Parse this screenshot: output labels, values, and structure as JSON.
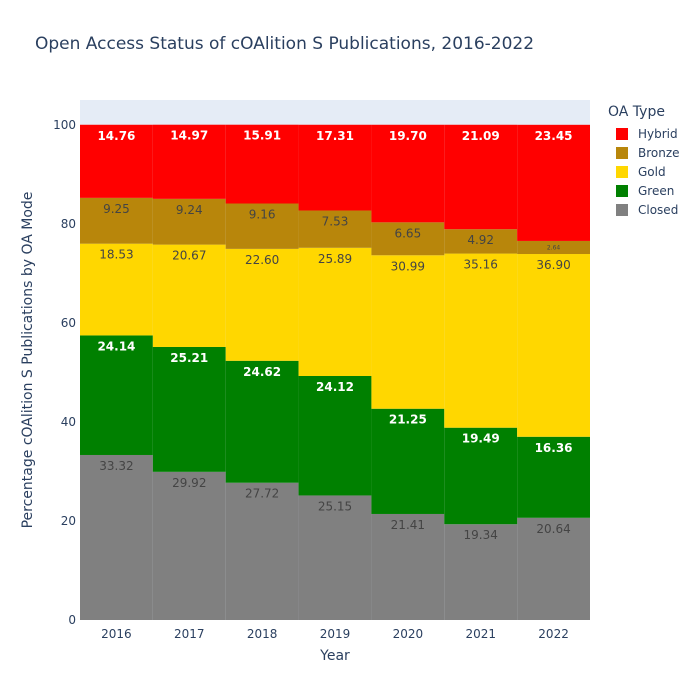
{
  "chart_data": {
    "type": "bar",
    "stacked": true,
    "title": "Open Access Status of cOAlition S Publications, 2016-2022",
    "xlabel": "Year",
    "ylabel": "Percentage cOAlition S Publications by OA Mode",
    "categories": [
      "2016",
      "2017",
      "2018",
      "2019",
      "2020",
      "2021",
      "2022"
    ],
    "ylim": [
      0,
      105
    ],
    "yticks": [
      0,
      20,
      40,
      60,
      80,
      100
    ],
    "grid": false,
    "legend_title": "OA Type",
    "legend_position": "right",
    "plot_background": "#e5ecf6",
    "series": [
      {
        "name": "Closed",
        "color": "#808080",
        "label_color": "#444444",
        "values": [
          33.32,
          29.92,
          27.72,
          25.15,
          21.41,
          19.34,
          20.64
        ],
        "labels": [
          "33.32",
          "29.92",
          "27.72",
          "25.15",
          "21.41",
          "19.34",
          "20.64"
        ]
      },
      {
        "name": "Green",
        "color": "#008000",
        "label_color": "#ffffff",
        "values": [
          24.14,
          25.21,
          24.62,
          24.12,
          21.25,
          19.49,
          16.36
        ],
        "labels": [
          "24.14",
          "25.21",
          "24.62",
          "24.12",
          "21.25",
          "19.49",
          "16.36"
        ]
      },
      {
        "name": "Gold",
        "color": "#ffd700",
        "label_color": "#444444",
        "values": [
          18.53,
          20.67,
          22.6,
          25.89,
          30.99,
          35.16,
          36.9
        ],
        "labels": [
          "18.53",
          "20.67",
          "22.60",
          "25.89",
          "30.99",
          "35.16",
          "36.90"
        ]
      },
      {
        "name": "Bronze",
        "color": "#b8860b",
        "label_color": "#444444",
        "values": [
          9.25,
          9.24,
          9.16,
          7.53,
          6.65,
          4.92,
          2.64
        ],
        "labels": [
          "9.25",
          "9.24",
          "9.16",
          "7.53",
          "6.65",
          "4.92",
          "2.64"
        ]
      },
      {
        "name": "Hybrid",
        "color": "#ff0000",
        "label_color": "#ffffff",
        "values": [
          14.76,
          14.97,
          15.91,
          17.31,
          19.7,
          21.09,
          23.45
        ],
        "labels": [
          "14.76",
          "14.97",
          "15.91",
          "17.31",
          "19.70",
          "21.09",
          "23.45"
        ]
      }
    ],
    "legend_order": [
      "Hybrid",
      "Bronze",
      "Gold",
      "Green",
      "Closed"
    ]
  }
}
